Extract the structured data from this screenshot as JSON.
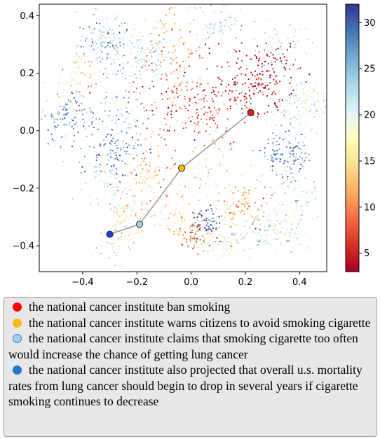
{
  "chart_data": {
    "type": "scatter",
    "title": "",
    "xlabel": "",
    "ylabel": "",
    "xlim": [
      -0.56,
      0.5
    ],
    "ylim": [
      -0.49,
      0.44
    ],
    "x_ticks": [
      -0.4,
      -0.2,
      0.0,
      0.2,
      0.4
    ],
    "y_ticks": [
      -0.4,
      -0.2,
      0.0,
      0.2,
      0.4
    ],
    "grid": false,
    "colorbar": {
      "colormap": "RdYlBu",
      "range": [
        3,
        32
      ],
      "ticks": [
        5,
        10,
        15,
        20,
        25,
        30
      ]
    },
    "background_clusters": [
      {
        "x": -0.32,
        "y": 0.3,
        "spread": 0.05,
        "n": 160,
        "value": 24
      },
      {
        "x": -0.18,
        "y": 0.24,
        "spread": 0.05,
        "n": 140,
        "value": 22
      },
      {
        "x": -0.1,
        "y": 0.34,
        "spread": 0.06,
        "n": 90,
        "value": 14
      },
      {
        "x": 0.1,
        "y": 0.37,
        "spread": 0.05,
        "n": 80,
        "value": 22
      },
      {
        "x": 0.33,
        "y": 0.3,
        "spread": 0.05,
        "n": 90,
        "value": 20
      },
      {
        "x": -0.45,
        "y": 0.05,
        "spread": 0.05,
        "n": 120,
        "value": 26
      },
      {
        "x": -0.4,
        "y": 0.18,
        "spread": 0.05,
        "n": 70,
        "value": 16
      },
      {
        "x": -0.26,
        "y": 0.06,
        "spread": 0.05,
        "n": 90,
        "value": 22
      },
      {
        "x": -0.28,
        "y": -0.08,
        "spread": 0.05,
        "n": 110,
        "value": 28
      },
      {
        "x": -0.02,
        "y": 0.1,
        "spread": 0.09,
        "n": 220,
        "value": 8
      },
      {
        "x": 0.2,
        "y": 0.15,
        "spread": 0.07,
        "n": 150,
        "value": 5
      },
      {
        "x": 0.3,
        "y": 0.2,
        "spread": 0.05,
        "n": 80,
        "value": 4
      },
      {
        "x": 0.38,
        "y": 0.05,
        "spread": 0.06,
        "n": 120,
        "value": 20
      },
      {
        "x": 0.45,
        "y": 0.1,
        "spread": 0.04,
        "n": 80,
        "value": 19
      },
      {
        "x": 0.35,
        "y": -0.08,
        "spread": 0.04,
        "n": 110,
        "value": 28
      },
      {
        "x": 0.38,
        "y": -0.22,
        "spread": 0.05,
        "n": 100,
        "value": 21
      },
      {
        "x": -0.15,
        "y": -0.16,
        "spread": 0.05,
        "n": 110,
        "value": 14
      },
      {
        "x": -0.3,
        "y": -0.18,
        "spread": 0.05,
        "n": 90,
        "value": 20
      },
      {
        "x": 0.05,
        "y": -0.12,
        "spread": 0.05,
        "n": 70,
        "value": 17
      },
      {
        "x": 0.18,
        "y": -0.26,
        "spread": 0.05,
        "n": 110,
        "value": 12
      },
      {
        "x": 0.25,
        "y": -0.35,
        "spread": 0.05,
        "n": 90,
        "value": 22
      },
      {
        "x": 0.1,
        "y": -0.38,
        "spread": 0.04,
        "n": 80,
        "value": 17
      },
      {
        "x": -0.23,
        "y": -0.3,
        "spread": 0.04,
        "n": 90,
        "value": 16
      },
      {
        "x": -0.28,
        "y": -0.38,
        "spread": 0.04,
        "n": 70,
        "value": 20
      },
      {
        "x": -0.05,
        "y": -0.3,
        "spread": 0.04,
        "n": 60,
        "value": 15
      },
      {
        "x": 0.01,
        "y": -0.36,
        "spread": 0.03,
        "n": 60,
        "value": 10
      },
      {
        "x": 0.06,
        "y": -0.32,
        "spread": 0.03,
        "n": 60,
        "value": 29
      },
      {
        "x": 0.35,
        "y": -0.36,
        "spread": 0.04,
        "n": 70,
        "value": 19
      }
    ],
    "path": [
      {
        "x": 0.22,
        "y": 0.063,
        "color": "#e31a1c"
      },
      {
        "x": -0.035,
        "y": -0.13,
        "color": "#fdb913"
      },
      {
        "x": -0.19,
        "y": -0.325,
        "color": "#a6cfe8"
      },
      {
        "x": -0.3,
        "y": -0.36,
        "color": "#1f3fd6"
      }
    ]
  },
  "legend": {
    "entries": [
      {
        "text": "the national cancer institute ban smoking",
        "color": "#ff0000"
      },
      {
        "text": "the national cancer institute warns citizens to avoid smoking cigarette",
        "color": "#fdb913"
      },
      {
        "text": "the national cancer institute claims that smoking cigarette too often would increase the chance of getting lung cancer",
        "color": "#a6cfe8"
      },
      {
        "text": "the national cancer institute also projected that overall u.s. mortality rates from lung cancer should begin to drop in several years if cigarette smoking continues to decrease",
        "color": "#1f78c8"
      }
    ]
  }
}
